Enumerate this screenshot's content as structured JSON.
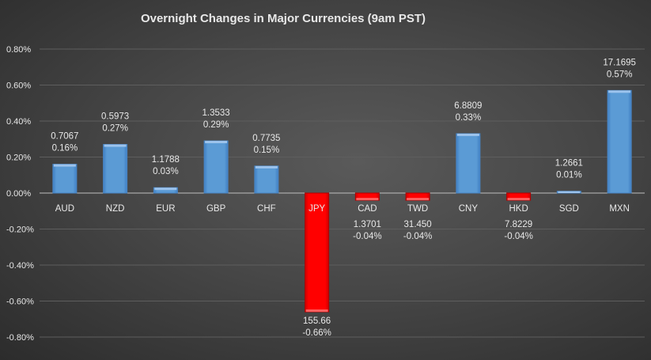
{
  "chart_data": {
    "type": "bar",
    "title": "Overnight Changes in Major Currencies (9am PST)",
    "xlabel": "",
    "ylabel": "",
    "ylim": [
      -0.8,
      0.8
    ],
    "yticks": [
      0.8,
      0.6,
      0.4,
      0.2,
      0.0,
      -0.2,
      -0.4,
      -0.6,
      -0.8
    ],
    "ytick_labels": [
      "0.80%",
      "0.60%",
      "0.40%",
      "0.20%",
      "0.00%",
      "-0.20%",
      "-0.40%",
      "-0.60%",
      "-0.80%"
    ],
    "grid": true,
    "categories": [
      "AUD",
      "NZD",
      "EUR",
      "GBP",
      "CHF",
      "JPY",
      "CAD",
      "TWD",
      "CNY",
      "HKD",
      "SGD",
      "MXN"
    ],
    "values": [
      0.16,
      0.27,
      0.03,
      0.29,
      0.15,
      -0.66,
      -0.04,
      -0.04,
      0.33,
      -0.04,
      0.01,
      0.57
    ],
    "rates": [
      "0.7067",
      "0.5973",
      "1.1788",
      "1.3533",
      "0.7735",
      "155.66",
      "1.3701",
      "31.450",
      "6.8809",
      "7.8229",
      "1.2661",
      "17.1695"
    ],
    "value_labels": [
      "0.16%",
      "0.27%",
      "0.03%",
      "0.29%",
      "0.15%",
      "-0.66%",
      "-0.04%",
      "-0.04%",
      "0.33%",
      "-0.04%",
      "0.01%",
      "0.57%"
    ],
    "colors": {
      "positive": "#5b9bd5",
      "negative": "#ff0000"
    }
  }
}
